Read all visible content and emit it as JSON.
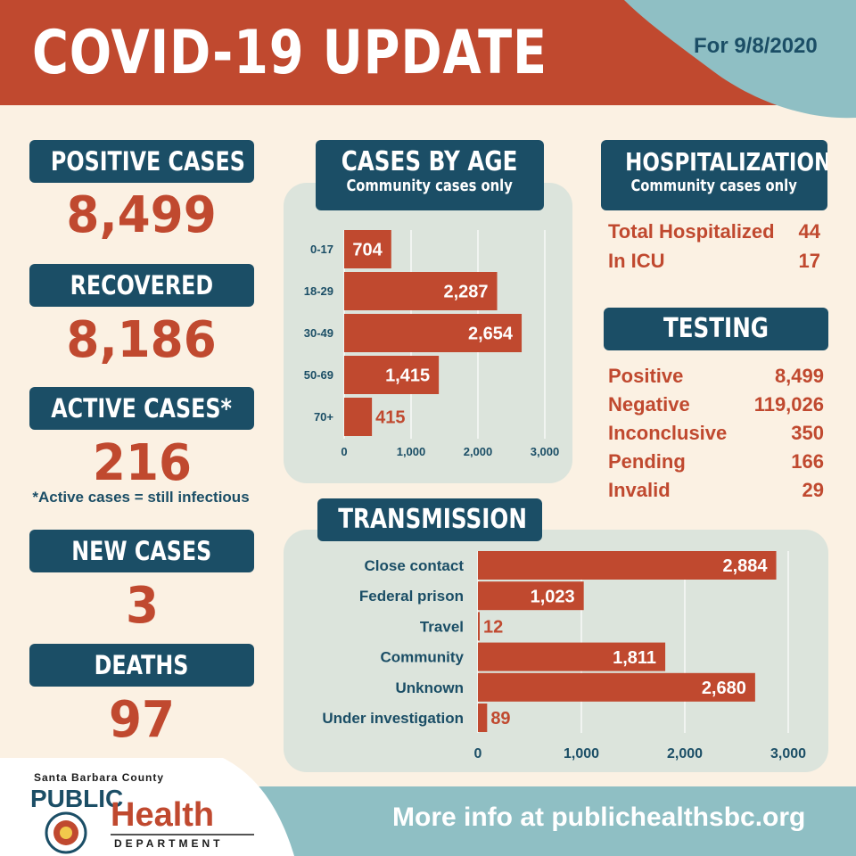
{
  "header": {
    "title": "COVID-19 UPDATE",
    "date": "For 9/8/2020"
  },
  "stats": [
    {
      "label": "POSITIVE CASES",
      "value": "8,499"
    },
    {
      "label": "RECOVERED",
      "value": "8,186"
    },
    {
      "label": "ACTIVE CASES*",
      "value": "216"
    },
    {
      "label": "NEW CASES",
      "value": "3"
    },
    {
      "label": "DEATHS",
      "value": "97"
    }
  ],
  "footnote": "*Active cases =  still infectious",
  "hospitalizations": {
    "title": "HOSPITALIZATIONS",
    "subtitle": "Community cases only",
    "rows": [
      {
        "label": "Total Hospitalized",
        "value": "44"
      },
      {
        "label": "In ICU",
        "value": "17"
      }
    ]
  },
  "testing": {
    "title": "TESTING",
    "rows": [
      {
        "label": "Positive",
        "value": "8,499"
      },
      {
        "label": "Negative",
        "value": "119,026"
      },
      {
        "label": "Inconclusive",
        "value": "350"
      },
      {
        "label": "Pending",
        "value": "166"
      },
      {
        "label": "Invalid",
        "value": "29"
      }
    ]
  },
  "footer": {
    "text": "More info at publichealthsbc.org"
  },
  "logo": {
    "county": "Santa Barbara County",
    "public": "PUBLIC",
    "health": "Health",
    "department": "DEPARTMENT"
  },
  "colors": {
    "accent": "#c0492f",
    "navy": "#1b4e66",
    "teal": "#8fbfc4",
    "panel": "#dce4dc",
    "background": "#fbf1e3"
  },
  "chart_data": [
    {
      "type": "bar",
      "orientation": "horizontal",
      "title": "CASES BY AGE",
      "subtitle": "Community cases only",
      "categories": [
        "0-17",
        "18-29",
        "30-49",
        "50-69",
        "70+"
      ],
      "values": [
        704,
        2287,
        2654,
        1415,
        415
      ],
      "value_labels": [
        "704",
        "2,287",
        "2,654",
        "1,415",
        "415"
      ],
      "xlim": [
        0,
        3000
      ],
      "ticks": [
        0,
        1000,
        2000,
        3000
      ],
      "tick_labels": [
        "0",
        "1,000",
        "2,000",
        "3,000"
      ],
      "grid": true
    },
    {
      "type": "bar",
      "orientation": "horizontal",
      "title": "TRANSMISSION",
      "categories": [
        "Close contact",
        "Federal prison",
        "Travel",
        "Community",
        "Unknown",
        "Under investigation"
      ],
      "values": [
        2884,
        1023,
        12,
        1811,
        2680,
        89
      ],
      "value_labels": [
        "2,884",
        "1,023",
        "12",
        "1,811",
        "2,680",
        "89"
      ],
      "xlim": [
        0,
        3000
      ],
      "ticks": [
        0,
        1000,
        2000,
        3000
      ],
      "tick_labels": [
        "0",
        "1,000",
        "2,000",
        "3,000"
      ],
      "grid": true
    }
  ]
}
